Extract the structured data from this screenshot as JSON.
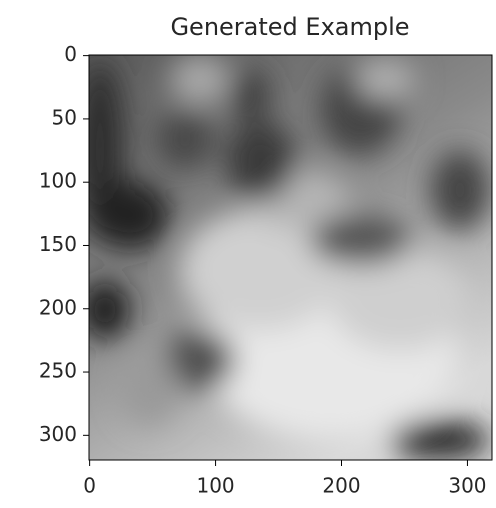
{
  "chart_data": {
    "type": "image",
    "title": "Generated Example",
    "xlim": [
      -0.5,
      319.5
    ],
    "ylim": [
      319.5,
      -0.5
    ],
    "xticks": [
      0,
      100,
      200,
      300
    ],
    "yticks": [
      0,
      50,
      100,
      150,
      200,
      250,
      300
    ]
  }
}
